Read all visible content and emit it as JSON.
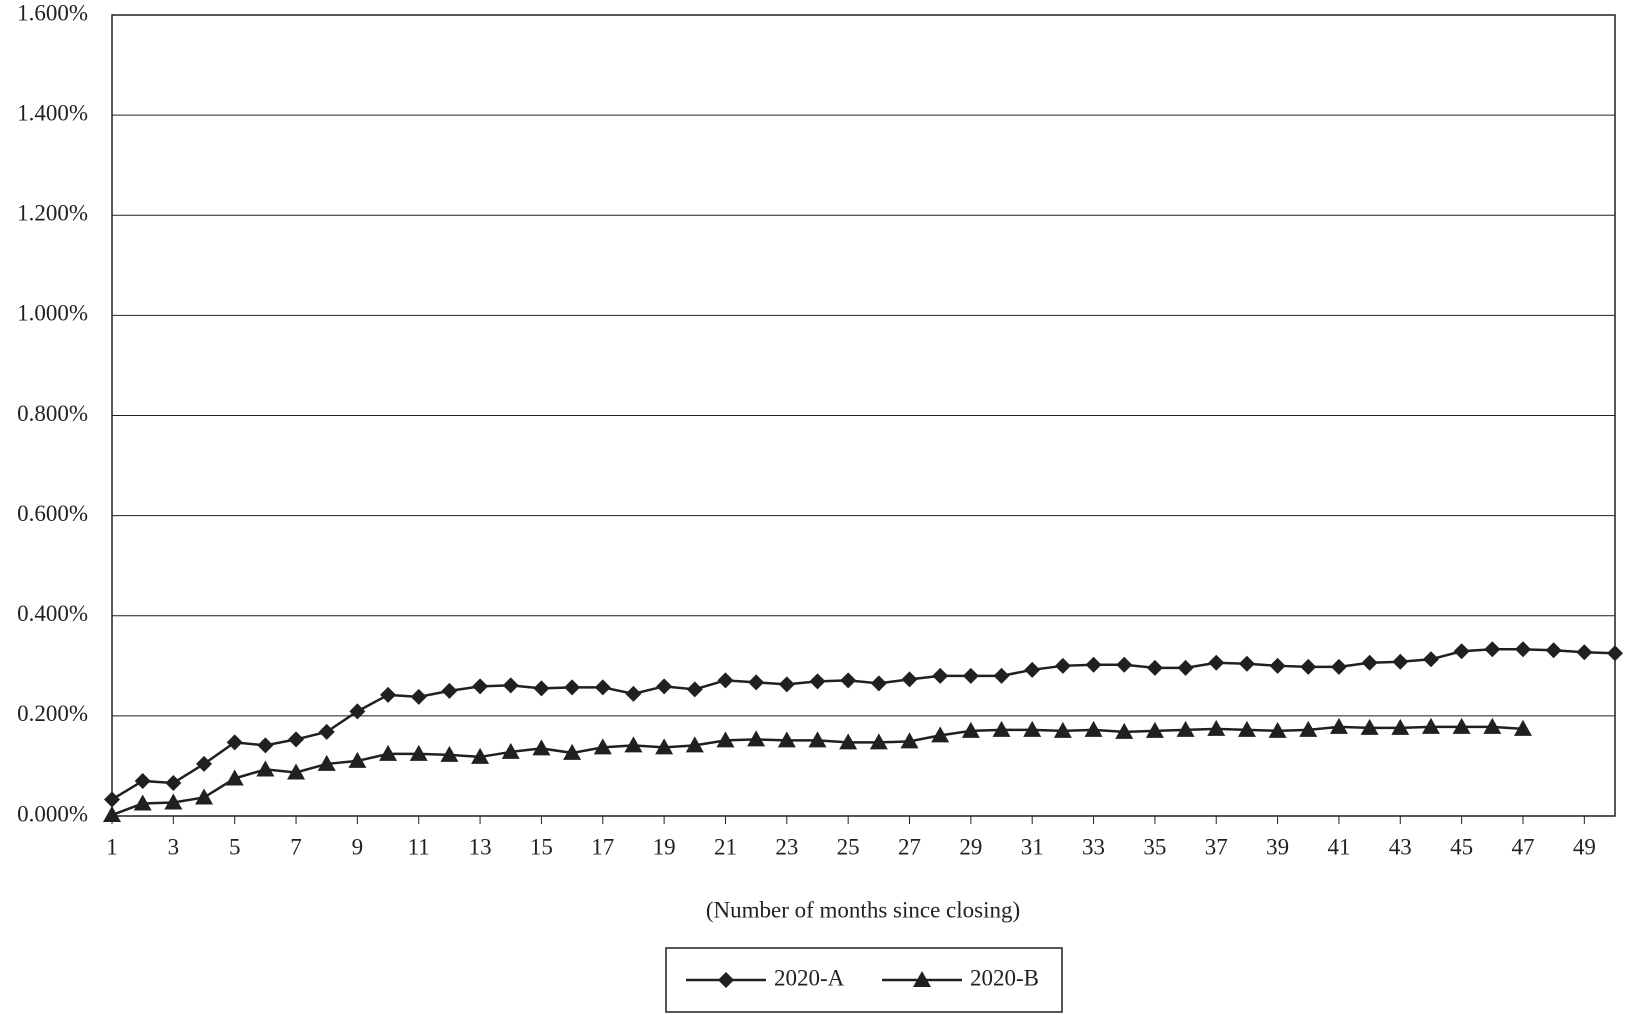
{
  "chart_data": {
    "type": "line",
    "x_label": "(Number of months since closing)",
    "x": [
      1,
      2,
      3,
      4,
      5,
      6,
      7,
      8,
      9,
      10,
      11,
      12,
      13,
      14,
      15,
      16,
      17,
      18,
      19,
      20,
      21,
      22,
      23,
      24,
      25,
      26,
      27,
      28,
      29,
      30,
      31,
      32,
      33,
      34,
      35,
      36,
      37,
      38,
      39,
      40,
      41,
      42,
      43,
      44,
      45,
      46,
      47,
      48,
      49,
      50
    ],
    "series": [
      {
        "name": "2020-A",
        "color": "#231f20",
        "marker": "diamond",
        "values": [
          0.033,
          0.07,
          0.066,
          0.104,
          0.147,
          0.141,
          0.153,
          0.168,
          0.209,
          0.242,
          0.238,
          0.25,
          0.259,
          0.261,
          0.255,
          0.257,
          0.257,
          0.244,
          0.259,
          0.253,
          0.271,
          0.267,
          0.263,
          0.269,
          0.271,
          0.265,
          0.273,
          0.28,
          0.28,
          0.28,
          0.292,
          0.3,
          0.302,
          0.302,
          0.296,
          0.296,
          0.306,
          0.304,
          0.3,
          0.298,
          0.298,
          0.306,
          0.308,
          0.313,
          0.329,
          0.333,
          0.333,
          0.331,
          0.327,
          0.325
        ]
      },
      {
        "name": "2020-B",
        "color": "#231f20",
        "marker": "triangle",
        "values": [
          0.002,
          0.025,
          0.027,
          0.037,
          0.075,
          0.093,
          0.087,
          0.104,
          0.11,
          0.124,
          0.124,
          0.122,
          0.118,
          0.128,
          0.135,
          0.126,
          0.137,
          0.141,
          0.137,
          0.141,
          0.151,
          0.153,
          0.151,
          0.151,
          0.147,
          0.147,
          0.149,
          0.161,
          0.17,
          0.172,
          0.172,
          0.17,
          0.172,
          0.168,
          0.17,
          0.172,
          0.174,
          0.172,
          0.17,
          0.172,
          0.178,
          0.176,
          0.176,
          0.178,
          0.178,
          0.178,
          0.174,
          null,
          null,
          null
        ]
      }
    ],
    "xlim": [
      1,
      50
    ],
    "xticks": [
      1,
      3,
      5,
      7,
      9,
      11,
      13,
      15,
      17,
      19,
      21,
      23,
      25,
      27,
      29,
      31,
      33,
      35,
      37,
      39,
      41,
      43,
      45,
      47,
      49
    ],
    "ylim": [
      0,
      1.6
    ],
    "yticks": [
      {
        "value": 0,
        "label": "0.000%"
      },
      {
        "value": 0.2,
        "label": "0.200%"
      },
      {
        "value": 0.4,
        "label": "0.400%"
      },
      {
        "value": 0.6,
        "label": "0.600%"
      },
      {
        "value": 0.8,
        "label": "0.800%"
      },
      {
        "value": 1.0,
        "label": "1.000%"
      },
      {
        "value": 1.2,
        "label": "1.200%"
      },
      {
        "value": 1.4,
        "label": "1.400%"
      },
      {
        "value": 1.6,
        "label": "1.600%"
      }
    ],
    "grid": true,
    "legend": "bottom"
  }
}
